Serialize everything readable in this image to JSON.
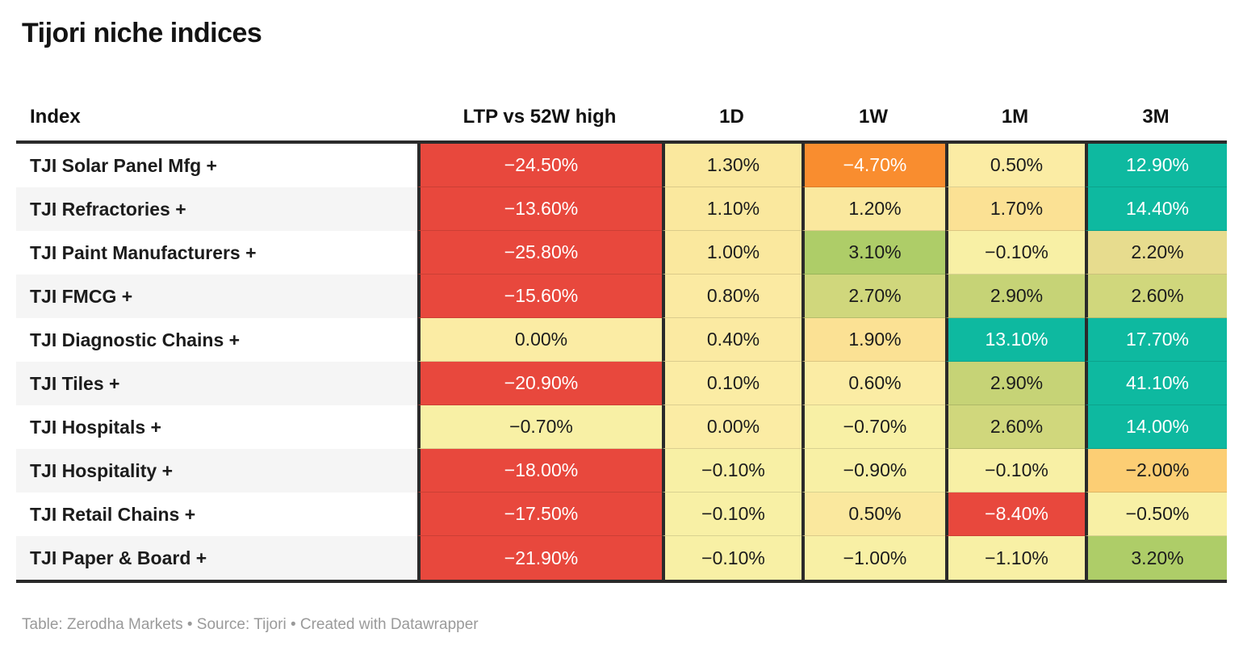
{
  "title": "Tijori niche indices",
  "footer": {
    "text": "Table: Zerodha Markets • Source: Tijori • Created with Datawrapper"
  },
  "colors": {
    "red": "#e8483d",
    "orange": "#f98d2f",
    "amber": "#fcce74",
    "teal": "#0eb9a0",
    "green": "#aecd68",
    "yellow_green_dark": "#c6d376",
    "yellow_green": "#d0d77c",
    "khaki": "#e7dc8e",
    "warm_yellow": "#fbe194",
    "yellow": "#fae89e",
    "pale_yellow": "#fbeca4",
    "palest_yellow": "#f8f0a5",
    "header_rule": "#2a2a2a",
    "stripe_gray": "#f5f5f5",
    "footer_gray": "#9a9a9a"
  },
  "chart_data": {
    "type": "table",
    "title": "Tijori niche indices",
    "columns": [
      "Index",
      "LTP vs 52W high",
      "1D",
      "1W",
      "1M",
      "3M"
    ],
    "unit": "%",
    "rows": [
      {
        "index": "TJI Solar Panel Mfg +",
        "values": [
          -24.5,
          1.3,
          -4.7,
          0.5,
          12.9
        ]
      },
      {
        "index": "TJI Refractories +",
        "values": [
          -13.6,
          1.1,
          1.2,
          1.7,
          14.4
        ]
      },
      {
        "index": "TJI Paint Manufacturers +",
        "values": [
          -25.8,
          1.0,
          3.1,
          -0.1,
          2.2
        ]
      },
      {
        "index": "TJI FMCG +",
        "values": [
          -15.6,
          0.8,
          2.7,
          2.9,
          2.6
        ]
      },
      {
        "index": "TJI Diagnostic Chains +",
        "values": [
          0.0,
          0.4,
          1.9,
          13.1,
          17.7
        ]
      },
      {
        "index": "TJI Tiles +",
        "values": [
          -20.9,
          0.1,
          0.6,
          2.9,
          41.1
        ]
      },
      {
        "index": "TJI Hospitals +",
        "values": [
          -0.7,
          0.0,
          -0.7,
          2.6,
          14.0
        ]
      },
      {
        "index": "TJI Hospitality +",
        "values": [
          -18.0,
          -0.1,
          -0.9,
          -0.1,
          -2.0
        ]
      },
      {
        "index": "TJI Retail Chains +",
        "values": [
          -17.5,
          -0.1,
          0.5,
          -8.4,
          -0.5
        ]
      },
      {
        "index": "TJI Paper & Board +",
        "values": [
          -21.9,
          -0.1,
          -1.0,
          -1.1,
          3.2
        ]
      }
    ]
  },
  "table": {
    "header": [
      {
        "label": "Index"
      },
      {
        "label": "LTP vs 52W high"
      },
      {
        "label": "1D"
      },
      {
        "label": "1W"
      },
      {
        "label": "1M"
      },
      {
        "label": "3M"
      }
    ],
    "rows": [
      {
        "name": "TJI Solar Panel Mfg +",
        "cells": [
          {
            "text": "−24.50%",
            "bg": "#e8483d",
            "fg": "#ffffff"
          },
          {
            "text": "1.30%",
            "bg": "#fae89e",
            "fg": "#1c1c1c"
          },
          {
            "text": "−4.70%",
            "bg": "#f98d2f",
            "fg": "#ffffff"
          },
          {
            "text": "0.50%",
            "bg": "#fbeca4",
            "fg": "#1c1c1c"
          },
          {
            "text": "12.90%",
            "bg": "#0eb9a0",
            "fg": "#ffffff"
          }
        ]
      },
      {
        "name": "TJI Refractories +",
        "cells": [
          {
            "text": "−13.60%",
            "bg": "#e8483d",
            "fg": "#ffffff"
          },
          {
            "text": "1.10%",
            "bg": "#fae89e",
            "fg": "#1c1c1c"
          },
          {
            "text": "1.20%",
            "bg": "#fae89e",
            "fg": "#1c1c1c"
          },
          {
            "text": "1.70%",
            "bg": "#fbe194",
            "fg": "#1c1c1c"
          },
          {
            "text": "14.40%",
            "bg": "#0eb9a0",
            "fg": "#ffffff"
          }
        ]
      },
      {
        "name": "TJI Paint Manufacturers +",
        "cells": [
          {
            "text": "−25.80%",
            "bg": "#e8483d",
            "fg": "#ffffff"
          },
          {
            "text": "1.00%",
            "bg": "#fae89e",
            "fg": "#1c1c1c"
          },
          {
            "text": "3.10%",
            "bg": "#aecd68",
            "fg": "#1c1c1c"
          },
          {
            "text": "−0.10%",
            "bg": "#f8f0a5",
            "fg": "#1c1c1c"
          },
          {
            "text": "2.20%",
            "bg": "#e7dc8e",
            "fg": "#1c1c1c"
          }
        ]
      },
      {
        "name": "TJI FMCG +",
        "cells": [
          {
            "text": "−15.60%",
            "bg": "#e8483d",
            "fg": "#ffffff"
          },
          {
            "text": "0.80%",
            "bg": "#fbeaa2",
            "fg": "#1c1c1c"
          },
          {
            "text": "2.70%",
            "bg": "#d0d77c",
            "fg": "#1c1c1c"
          },
          {
            "text": "2.90%",
            "bg": "#c6d376",
            "fg": "#1c1c1c"
          },
          {
            "text": "2.60%",
            "bg": "#d0d77c",
            "fg": "#1c1c1c"
          }
        ]
      },
      {
        "name": "TJI Diagnostic Chains +",
        "cells": [
          {
            "text": "0.00%",
            "bg": "#fbeca4",
            "fg": "#1c1c1c"
          },
          {
            "text": "0.40%",
            "bg": "#fbeaa2",
            "fg": "#1c1c1c"
          },
          {
            "text": "1.90%",
            "bg": "#fbe194",
            "fg": "#1c1c1c"
          },
          {
            "text": "13.10%",
            "bg": "#0eb9a0",
            "fg": "#ffffff"
          },
          {
            "text": "17.70%",
            "bg": "#0eb9a0",
            "fg": "#ffffff"
          }
        ]
      },
      {
        "name": "TJI Tiles +",
        "cells": [
          {
            "text": "−20.90%",
            "bg": "#e8483d",
            "fg": "#ffffff"
          },
          {
            "text": "0.10%",
            "bg": "#fbeca4",
            "fg": "#1c1c1c"
          },
          {
            "text": "0.60%",
            "bg": "#fbeca4",
            "fg": "#1c1c1c"
          },
          {
            "text": "2.90%",
            "bg": "#c6d376",
            "fg": "#1c1c1c"
          },
          {
            "text": "41.10%",
            "bg": "#0eb9a0",
            "fg": "#ffffff"
          }
        ]
      },
      {
        "name": "TJI Hospitals +",
        "cells": [
          {
            "text": "−0.70%",
            "bg": "#f8f0a5",
            "fg": "#1c1c1c"
          },
          {
            "text": "0.00%",
            "bg": "#fbeca4",
            "fg": "#1c1c1c"
          },
          {
            "text": "−0.70%",
            "bg": "#f8f0a5",
            "fg": "#1c1c1c"
          },
          {
            "text": "2.60%",
            "bg": "#d0d77c",
            "fg": "#1c1c1c"
          },
          {
            "text": "14.00%",
            "bg": "#0eb9a0",
            "fg": "#ffffff"
          }
        ]
      },
      {
        "name": "TJI Hospitality +",
        "cells": [
          {
            "text": "−18.00%",
            "bg": "#e8483d",
            "fg": "#ffffff"
          },
          {
            "text": "−0.10%",
            "bg": "#f8f0a5",
            "fg": "#1c1c1c"
          },
          {
            "text": "−0.90%",
            "bg": "#f8f0a5",
            "fg": "#1c1c1c"
          },
          {
            "text": "−0.10%",
            "bg": "#f8f0a5",
            "fg": "#1c1c1c"
          },
          {
            "text": "−2.00%",
            "bg": "#fcce74",
            "fg": "#1c1c1c"
          }
        ]
      },
      {
        "name": "TJI Retail Chains +",
        "cells": [
          {
            "text": "−17.50%",
            "bg": "#e8483d",
            "fg": "#ffffff"
          },
          {
            "text": "−0.10%",
            "bg": "#f8f0a5",
            "fg": "#1c1c1c"
          },
          {
            "text": "0.50%",
            "bg": "#fae89e",
            "fg": "#1c1c1c"
          },
          {
            "text": "−8.40%",
            "bg": "#e8483d",
            "fg": "#ffffff"
          },
          {
            "text": "−0.50%",
            "bg": "#f8f0a5",
            "fg": "#1c1c1c"
          }
        ]
      },
      {
        "name": "TJI Paper & Board +",
        "cells": [
          {
            "text": "−21.90%",
            "bg": "#e8483d",
            "fg": "#ffffff"
          },
          {
            "text": "−0.10%",
            "bg": "#f8f0a5",
            "fg": "#1c1c1c"
          },
          {
            "text": "−1.00%",
            "bg": "#f8f0a5",
            "fg": "#1c1c1c"
          },
          {
            "text": "−1.10%",
            "bg": "#f8f0a5",
            "fg": "#1c1c1c"
          },
          {
            "text": "3.20%",
            "bg": "#aecd68",
            "fg": "#1c1c1c"
          }
        ]
      }
    ]
  }
}
